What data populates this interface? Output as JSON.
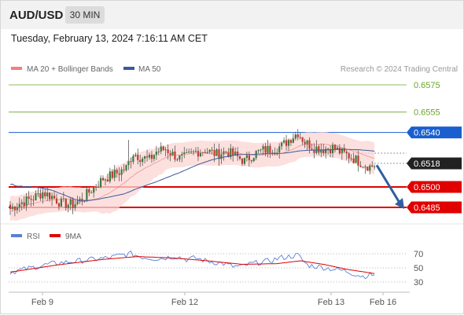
{
  "header": {
    "symbol": "AUD/USD",
    "timeframe": "30 MIN",
    "datetime": "Tuesday, February 13, 2024 7:16:11 AM CET"
  },
  "legend": {
    "ma20": "MA 20 + Bollinger Bands",
    "ma50": "MA 50",
    "credit": "Research © 2024 Trading Central"
  },
  "colors": {
    "up_candle": "#3c7a3c",
    "down_candle": "#c0392b",
    "ma50": "#3a5a9c",
    "ma20": "#e06060",
    "band_fill": "#fbd6d3",
    "green_level": "#6aa52a",
    "blue_level": "#1a5fd0",
    "red_level": "#e00000",
    "rsi": "#5b7fd6",
    "rsi_ma": "#e00000",
    "arrow": "#2f5fa0"
  },
  "chart_data": [
    {
      "type": "candlestick",
      "title": "AUD/USD 30 MIN",
      "ylim": [
        0.6478,
        0.6582
      ],
      "x_ticks": [
        "Feb 9",
        "Feb 12",
        "Feb 13",
        "Feb 16"
      ],
      "current_price": "0.6518",
      "levels": [
        {
          "value": "0.6575",
          "kind": "resistance",
          "style": "green"
        },
        {
          "value": "0.6555",
          "kind": "resistance",
          "style": "green"
        },
        {
          "value": "0.6540",
          "kind": "pivot",
          "style": "blue"
        },
        {
          "value": "0.6500",
          "kind": "support",
          "style": "red"
        },
        {
          "value": "0.6485",
          "kind": "support",
          "style": "red"
        }
      ],
      "forecast": {
        "from": 0.6516,
        "to": 0.6485,
        "direction": "down"
      },
      "series": [
        {
          "name": "MA 20 + Bollinger Bands"
        },
        {
          "name": "MA 50"
        }
      ],
      "anchors": [
        [
          0,
          0.6484
        ],
        [
          4,
          0.6488
        ],
        [
          10,
          0.6492
        ],
        [
          14,
          0.6496
        ],
        [
          18,
          0.6493
        ],
        [
          22,
          0.6488
        ],
        [
          27,
          0.6487
        ],
        [
          31,
          0.6491
        ],
        [
          35,
          0.6498
        ],
        [
          40,
          0.6506
        ],
        [
          43,
          0.6508
        ],
        [
          47,
          0.6511
        ],
        [
          50,
          0.6514
        ],
        [
          53,
          0.6525
        ],
        [
          56,
          0.6522
        ],
        [
          60,
          0.652
        ],
        [
          63,
          0.6526
        ],
        [
          67,
          0.6528
        ],
        [
          70,
          0.6524
        ],
        [
          73,
          0.6521
        ],
        [
          76,
          0.6522
        ],
        [
          80,
          0.6526
        ],
        [
          84,
          0.6527
        ],
        [
          89,
          0.6524
        ],
        [
          93,
          0.6526
        ],
        [
          97,
          0.6523
        ],
        [
          101,
          0.6519
        ],
        [
          105,
          0.6524
        ],
        [
          109,
          0.6527
        ],
        [
          113,
          0.6528
        ],
        [
          117,
          0.653
        ],
        [
          121,
          0.6536
        ],
        [
          124,
          0.654
        ],
        [
          127,
          0.6533
        ],
        [
          131,
          0.6529
        ],
        [
          135,
          0.6528
        ],
        [
          139,
          0.6529
        ],
        [
          143,
          0.6525
        ],
        [
          147,
          0.6522
        ],
        [
          151,
          0.6518
        ],
        [
          155,
          0.6515
        ],
        [
          157,
          0.6516
        ]
      ]
    },
    {
      "type": "line",
      "title": "RSI",
      "series": [
        {
          "name": "RSI"
        },
        {
          "name": "9MA"
        }
      ],
      "y_ticks": [
        "70",
        "50",
        "30"
      ],
      "ylim": [
        20,
        80
      ],
      "anchors": [
        [
          0,
          44
        ],
        [
          6,
          48
        ],
        [
          12,
          52
        ],
        [
          18,
          56
        ],
        [
          24,
          58
        ],
        [
          30,
          60
        ],
        [
          36,
          62
        ],
        [
          42,
          64
        ],
        [
          48,
          68
        ],
        [
          52,
          70
        ],
        [
          56,
          66
        ],
        [
          60,
          64
        ],
        [
          64,
          63
        ],
        [
          68,
          65
        ],
        [
          72,
          66
        ],
        [
          76,
          62
        ],
        [
          80,
          64
        ],
        [
          84,
          60
        ],
        [
          88,
          58
        ],
        [
          92,
          56
        ],
        [
          96,
          52
        ],
        [
          100,
          52
        ],
        [
          104,
          56
        ],
        [
          108,
          58
        ],
        [
          112,
          60
        ],
        [
          116,
          64
        ],
        [
          120,
          66
        ],
        [
          124,
          68
        ],
        [
          128,
          54
        ],
        [
          132,
          52
        ],
        [
          136,
          50
        ],
        [
          140,
          48
        ],
        [
          144,
          46
        ],
        [
          148,
          42
        ],
        [
          152,
          38
        ],
        [
          157,
          41
        ]
      ],
      "ma_anchors": [
        [
          0,
          44
        ],
        [
          20,
          54
        ],
        [
          40,
          62
        ],
        [
          55,
          66
        ],
        [
          70,
          64
        ],
        [
          85,
          60
        ],
        [
          100,
          55
        ],
        [
          115,
          56
        ],
        [
          125,
          60
        ],
        [
          135,
          55
        ],
        [
          145,
          48
        ],
        [
          157,
          42
        ]
      ]
    }
  ]
}
